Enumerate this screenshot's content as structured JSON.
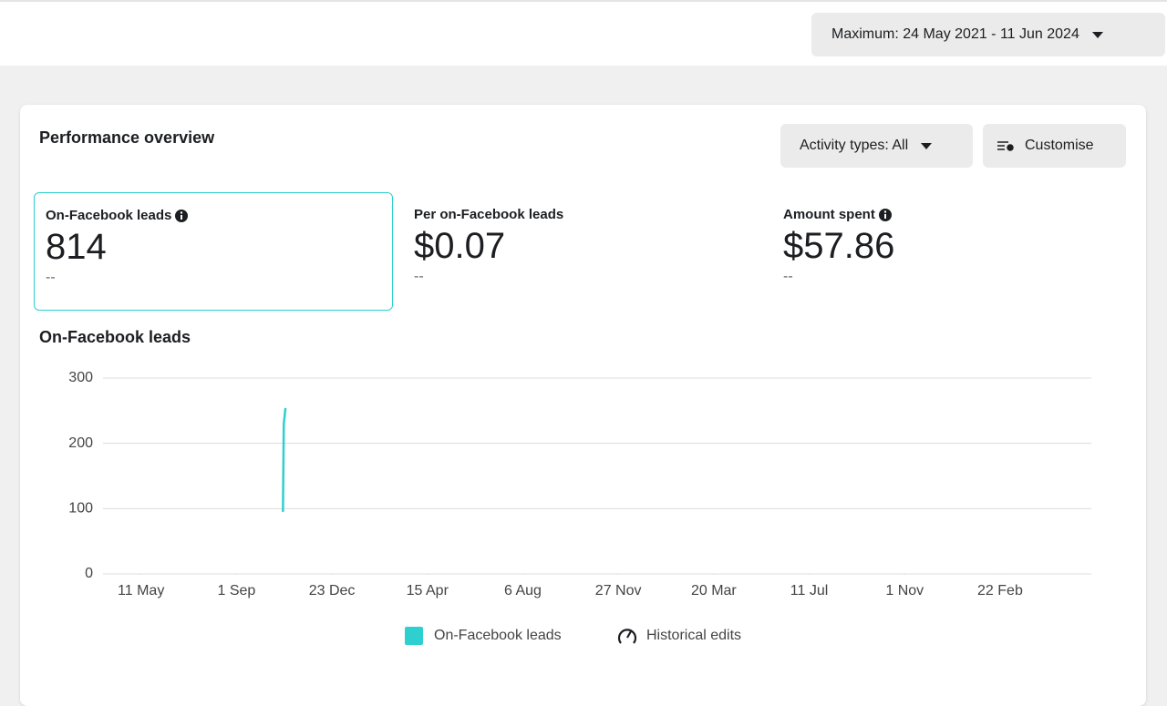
{
  "header": {
    "date_range": "Maximum: 24 May 2021 - 11 Jun 2024"
  },
  "card": {
    "title": "Performance overview",
    "activity_button": "Activity types: All",
    "customise_button": "Customise",
    "metrics": [
      {
        "label": "On-Facebook leads",
        "value": "814",
        "change": "--"
      },
      {
        "label": "Per on-Facebook leads",
        "value": "$0.07",
        "change": "--"
      },
      {
        "label": "Amount spent",
        "value": "$57.86",
        "change": "--"
      }
    ]
  },
  "chart_data": {
    "type": "line",
    "title": "On-Facebook leads",
    "x": [
      213,
      214,
      216
    ],
    "series": [
      {
        "name": "On-Facebook leads",
        "color": "#2ecfcf",
        "values": [
          95,
          230,
          254
        ]
      }
    ],
    "xlim": [
      0,
      1170
    ],
    "xticks": [
      {
        "value": 45,
        "label": "11 May"
      },
      {
        "value": 158,
        "label": "1 Sep"
      },
      {
        "value": 271,
        "label": "23 Dec"
      },
      {
        "value": 384,
        "label": "15 Apr"
      },
      {
        "value": 497,
        "label": "6 Aug"
      },
      {
        "value": 610,
        "label": "27 Nov"
      },
      {
        "value": 723,
        "label": "20 Mar"
      },
      {
        "value": 836,
        "label": "11 Jul"
      },
      {
        "value": 949,
        "label": "1 Nov"
      },
      {
        "value": 1062,
        "label": "22 Feb"
      }
    ],
    "ylim": [
      0,
      300
    ],
    "yticks": [
      0,
      100,
      200,
      300
    ],
    "grid": true,
    "historical_edits_label": "Historical edits"
  }
}
